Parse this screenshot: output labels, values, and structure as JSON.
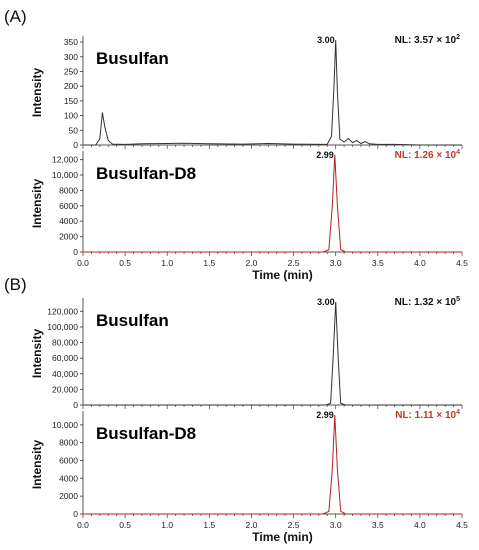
{
  "colors": {
    "black_trace": "#333333",
    "red_trace": "#b22222",
    "red_text": "#c0392b",
    "axis": "#555555"
  },
  "panel_labels": [
    "(A)",
    "(B)"
  ],
  "chart_data": [
    {
      "type": "line",
      "group": "A",
      "title": "Busulfan",
      "xlabel": "",
      "ylabel": "Intensity",
      "xlim": [
        0,
        4.5
      ],
      "ylim": [
        0,
        357
      ],
      "yticks": [
        0,
        50,
        100,
        150,
        200,
        250,
        300,
        350
      ],
      "peak_label": "3.00",
      "nl": {
        "prefix": "NL: 3.57",
        "times": "×",
        "base": "10",
        "exp": "2"
      },
      "color": "black",
      "series": [
        {
          "x": [
            0,
            0.15,
            0.2,
            0.23,
            0.26,
            0.3,
            0.35,
            0.5,
            0.7,
            1.0,
            1.2,
            1.5,
            1.9,
            2.2,
            2.5,
            2.9,
            2.95,
            2.98,
            3.0,
            3.02,
            3.05,
            3.1,
            3.15,
            3.2,
            3.25,
            3.3,
            3.35,
            3.4,
            3.5,
            3.7,
            4.0,
            4.5
          ],
          "y": [
            0,
            0,
            20,
            110,
            60,
            15,
            3,
            2,
            4,
            5,
            6,
            4,
            3,
            5,
            3,
            2,
            30,
            200,
            357,
            180,
            20,
            10,
            22,
            8,
            15,
            5,
            12,
            4,
            2,
            2,
            0,
            0
          ]
        }
      ]
    },
    {
      "type": "line",
      "group": "A",
      "title": "Busulfan-D8",
      "xlabel": "Time (min)",
      "ylabel": "Intensity",
      "xlim": [
        0,
        4.5
      ],
      "ylim": [
        0,
        12600
      ],
      "yticks": [
        0,
        2000,
        4000,
        6000,
        8000,
        10000,
        12000
      ],
      "ytick_labels": [
        "0",
        "2000",
        "4000",
        "6000",
        "8000",
        "10,000",
        "12,000"
      ],
      "xticks": [
        "0.0",
        "0.5",
        "1.0",
        "1.5",
        "2.0",
        "2.5",
        "3.0",
        "3.5",
        "4.0",
        "4.5"
      ],
      "peak_label": "2.99",
      "nl": {
        "prefix": "NL: 1.26",
        "times": "×",
        "base": "10",
        "exp": "4"
      },
      "color": "red",
      "series": [
        {
          "x": [
            0,
            2.85,
            2.92,
            2.96,
            2.99,
            3.02,
            3.06,
            3.12,
            4.5
          ],
          "y": [
            0,
            0,
            300,
            6000,
            12600,
            6000,
            300,
            0,
            0
          ]
        }
      ]
    },
    {
      "type": "line",
      "group": "B",
      "title": "Busulfan",
      "xlabel": "",
      "ylabel": "Intensity",
      "xlim": [
        0,
        4.5
      ],
      "ylim": [
        0,
        132000
      ],
      "yticks": [
        0,
        20000,
        40000,
        60000,
        80000,
        100000,
        120000
      ],
      "ytick_labels": [
        "0",
        "20,000",
        "40,000",
        "60,000",
        "80,000",
        "100,000",
        "120,000"
      ],
      "peak_label": "3.00",
      "nl": {
        "prefix": "NL: 1.32",
        "times": "×",
        "base": "10",
        "exp": "5"
      },
      "color": "black",
      "series": [
        {
          "x": [
            0,
            2.88,
            2.94,
            2.97,
            3.0,
            3.03,
            3.06,
            3.12,
            4.5
          ],
          "y": [
            0,
            0,
            2000,
            60000,
            132000,
            60000,
            2000,
            0,
            0
          ]
        }
      ]
    },
    {
      "type": "line",
      "group": "B",
      "title": "Busulfan-D8",
      "xlabel": "Time (min)",
      "ylabel": "Intensity",
      "xlim": [
        0,
        4.5
      ],
      "ylim": [
        0,
        11100
      ],
      "yticks": [
        0,
        2000,
        4000,
        6000,
        8000,
        10000
      ],
      "ytick_labels": [
        "0",
        "2000",
        "4000",
        "6000",
        "8000",
        "10,000"
      ],
      "xticks": [
        "0.0",
        "0.5",
        "1.0",
        "1.5",
        "2.0",
        "2.5",
        "3.0",
        "3.5",
        "4.0",
        "4.5"
      ],
      "peak_label": "2.99",
      "nl": {
        "prefix": "NL: 1.11",
        "times": "×",
        "base": "10",
        "exp": "4"
      },
      "color": "red",
      "series": [
        {
          "x": [
            0,
            2.85,
            2.92,
            2.96,
            2.99,
            3.02,
            3.06,
            3.12,
            4.5
          ],
          "y": [
            0,
            0,
            300,
            5000,
            11100,
            5000,
            300,
            0,
            0
          ]
        }
      ]
    }
  ]
}
